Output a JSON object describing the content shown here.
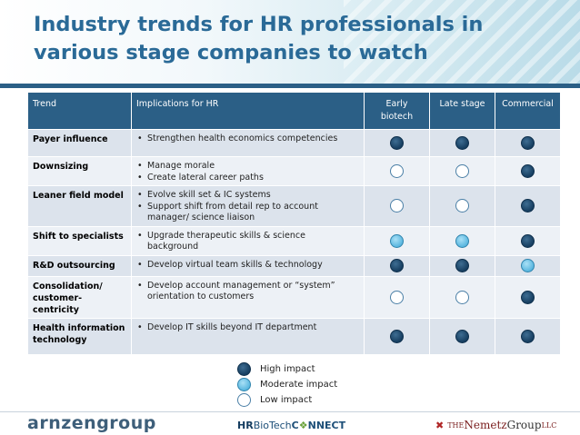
{
  "slide": {
    "title": "Industry trends for HR professionals in various stage companies to watch"
  },
  "table": {
    "headers": {
      "trend": "Trend",
      "implications": "Implications for HR",
      "early_biotech": "Early biotech",
      "late_stage": "Late stage",
      "commercial": "Commercial"
    },
    "rows": [
      {
        "trend": "Payer influence",
        "implications": [
          "Strengthen health economics competencies"
        ],
        "impact": [
          "high",
          "high",
          "high"
        ]
      },
      {
        "trend": "Downsizing",
        "implications": [
          "Manage morale",
          "Create lateral career paths"
        ],
        "impact": [
          "low",
          "low",
          "high"
        ]
      },
      {
        "trend": "Leaner field model",
        "implications": [
          "Evolve skill set & IC systems",
          "Support shift from detail rep to account manager/ science liaison"
        ],
        "impact": [
          "low",
          "low",
          "high"
        ]
      },
      {
        "trend": "Shift to specialists",
        "implications": [
          "Upgrade therapeutic skills & science background"
        ],
        "impact": [
          "moderate",
          "moderate",
          "high"
        ]
      },
      {
        "trend": "R&D outsourcing",
        "implications": [
          "Develop virtual team skills & technology"
        ],
        "impact": [
          "high",
          "high",
          "moderate"
        ]
      },
      {
        "trend": "Consolidation/ customer-centricity",
        "implications": [
          "Develop account management or “system” orientation to customers"
        ],
        "impact": [
          "low",
          "low",
          "high"
        ]
      },
      {
        "trend": "Health information technology",
        "implications": [
          "Develop IT skills beyond IT department"
        ],
        "impact": [
          "high",
          "high",
          "high"
        ]
      }
    ]
  },
  "legend": {
    "high": "High impact",
    "moderate": "Moderate impact",
    "low": "Low impact"
  },
  "footer": {
    "logo_left": "arnzengroup",
    "logo_mid_hr": "HR",
    "logo_mid_biotech": "BioTech",
    "logo_mid_connect_a": "C",
    "logo_mid_connect_x": "❖",
    "logo_mid_connect_b": "NNECT",
    "logo_right_the": "THE",
    "logo_right_name": "Nemetz",
    "logo_right_group": "Group",
    "logo_right_llc": "LLC"
  },
  "colors": {
    "header_blue": "#2b5f86",
    "title_blue": "#2a6a97",
    "high": "#163e60",
    "moderate": "#4fb1dc",
    "low": "#ffffff"
  }
}
